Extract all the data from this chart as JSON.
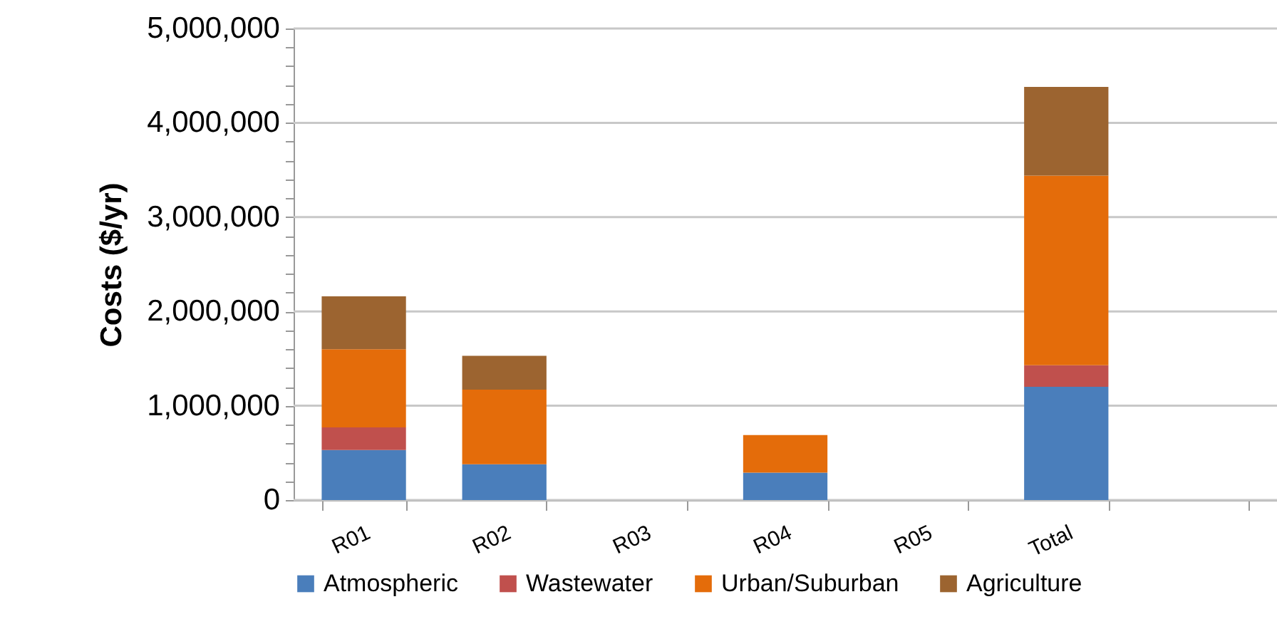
{
  "chart_data": {
    "type": "bar",
    "stacked": true,
    "ylabel": "Costs ($/yr)",
    "categories": [
      "R01",
      "R02",
      "R03",
      "R04",
      "R05",
      "Total",
      null
    ],
    "series": [
      {
        "name": "Atmospheric",
        "color": "#4a7ebb",
        "values": [
          530000,
          380000,
          0,
          290000,
          0,
          1200000,
          null
        ]
      },
      {
        "name": "Wastewater",
        "color": "#c0504d",
        "values": [
          240000,
          0,
          0,
          0,
          0,
          230000,
          null
        ]
      },
      {
        "name": "Urban/Suburban",
        "color": "#e46c0a",
        "values": [
          830000,
          790000,
          0,
          400000,
          0,
          2010000,
          null
        ]
      },
      {
        "name": "Agriculture",
        "color": "#9c6430",
        "values": [
          560000,
          360000,
          0,
          0,
          0,
          940000,
          null
        ]
      }
    ],
    "ylim": [
      0,
      5000000
    ],
    "yticks": [
      {
        "value": 0,
        "label": "0"
      },
      {
        "value": 200000,
        "label": null
      },
      {
        "value": 400000,
        "label": null
      },
      {
        "value": 600000,
        "label": null
      },
      {
        "value": 800000,
        "label": null
      },
      {
        "value": 1000000,
        "label": "1,000,000"
      },
      {
        "value": 1200000,
        "label": null
      },
      {
        "value": 1400000,
        "label": null
      },
      {
        "value": 1600000,
        "label": null
      },
      {
        "value": 1800000,
        "label": null
      },
      {
        "value": 2000000,
        "label": "2,000,000"
      },
      {
        "value": 2200000,
        "label": null
      },
      {
        "value": 2400000,
        "label": null
      },
      {
        "value": 2600000,
        "label": null
      },
      {
        "value": 2800000,
        "label": null
      },
      {
        "value": 3000000,
        "label": "3,000,000"
      },
      {
        "value": 3200000,
        "label": null
      },
      {
        "value": 3400000,
        "label": null
      },
      {
        "value": 3600000,
        "label": null
      },
      {
        "value": 3800000,
        "label": null
      },
      {
        "value": 4000000,
        "label": "4,000,000"
      },
      {
        "value": 4200000,
        "label": null
      },
      {
        "value": 4400000,
        "label": null
      },
      {
        "value": 4600000,
        "label": null
      },
      {
        "value": 4800000,
        "label": null
      },
      {
        "value": 5000000,
        "label": "5,000,000"
      }
    ],
    "grid": "y",
    "legend": "bottom"
  }
}
